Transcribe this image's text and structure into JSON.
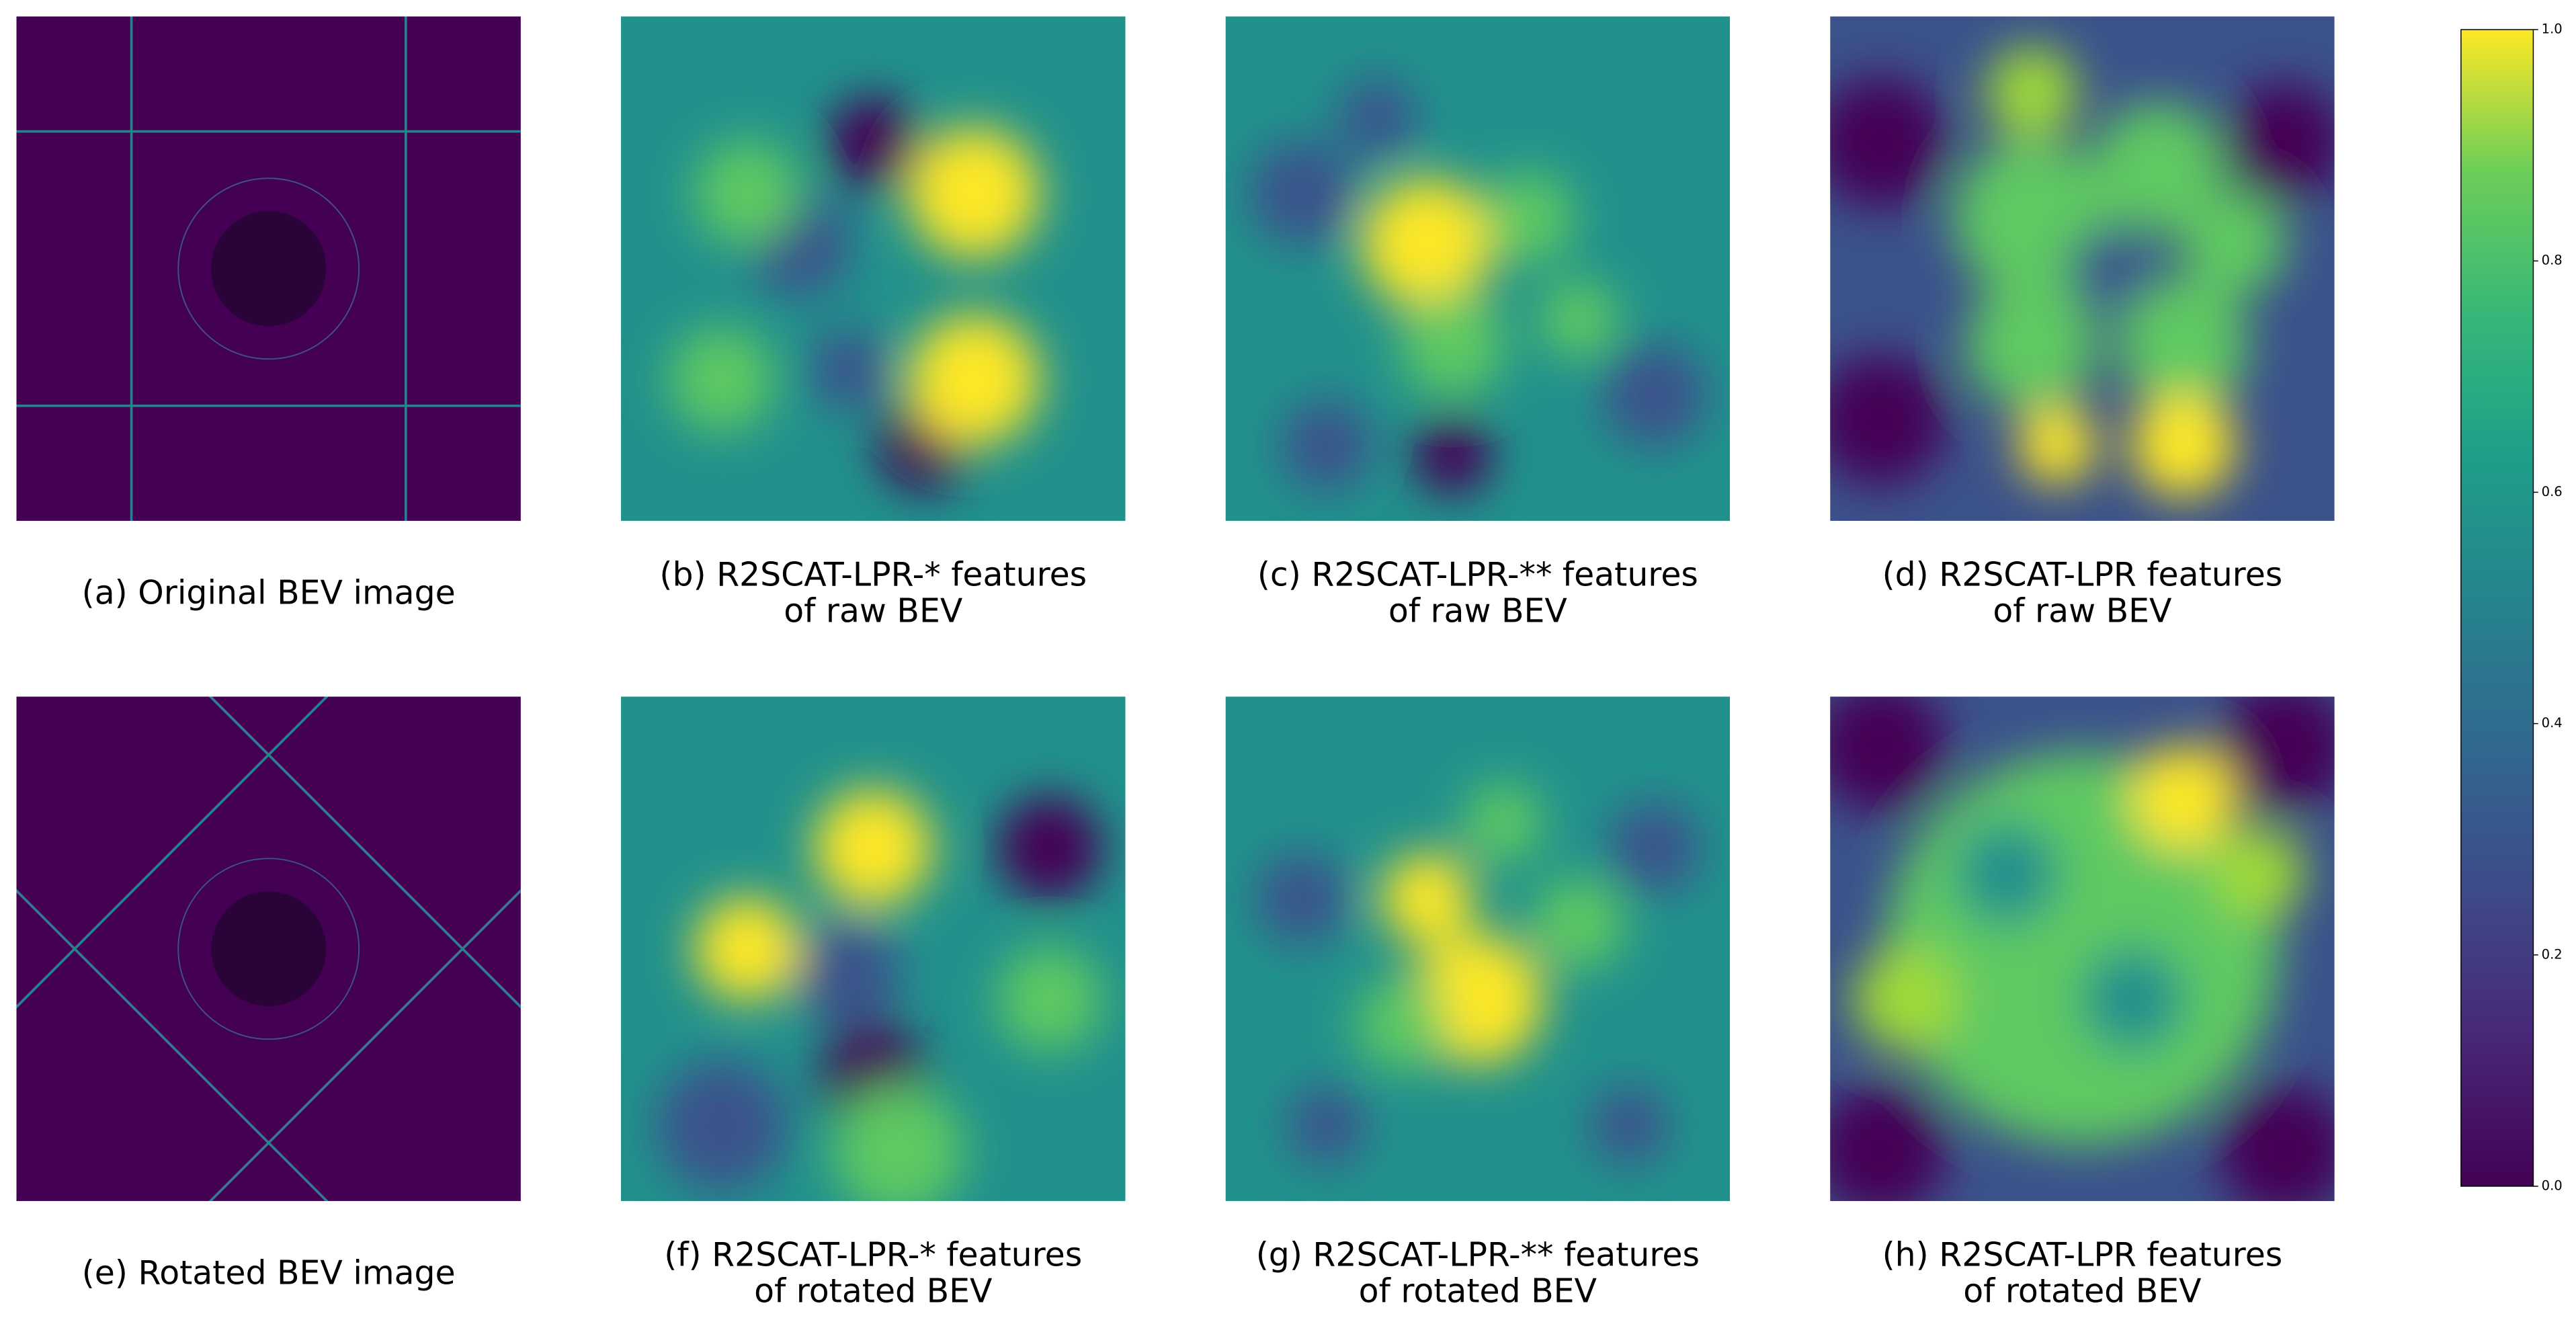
{
  "panels": [
    {
      "caption": [
        "(a) Original BEV image"
      ]
    },
    {
      "caption": [
        "(b) R2SCAT-LPR-* features",
        "of raw BEV"
      ]
    },
    {
      "caption": [
        "(c) R2SCAT-LPR-** features",
        "of raw BEV"
      ]
    },
    {
      "caption": [
        "(d) R2SCAT-LPR features",
        "of raw BEV"
      ]
    },
    {
      "caption": [
        "(e) Rotated BEV image"
      ]
    },
    {
      "caption": [
        "(f) R2SCAT-LPR-* features",
        "of rotated BEV"
      ]
    },
    {
      "caption": [
        "(g) R2SCAT-LPR-** features",
        "of rotated BEV"
      ]
    },
    {
      "caption": [
        "(h) R2SCAT-LPR features",
        "of rotated BEV"
      ]
    }
  ],
  "colorbar": {
    "ticks": [
      "0.0",
      "0.2",
      "0.4",
      "0.6",
      "0.8",
      "1.0"
    ]
  }
}
